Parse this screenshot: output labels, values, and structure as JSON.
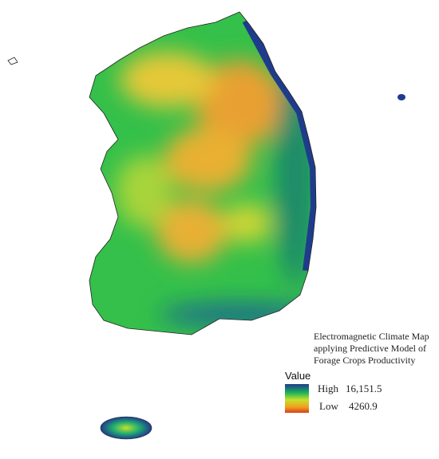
{
  "title": {
    "lines": [
      "Electromagnetic Climate Map",
      "applying Predictive Model of",
      "Forage Crops Productivity"
    ]
  },
  "legend": {
    "title": "Value",
    "high": {
      "label": "High",
      "value": "16,151.5"
    },
    "low": {
      "label": "Low",
      "value": "4260.9"
    }
  }
}
